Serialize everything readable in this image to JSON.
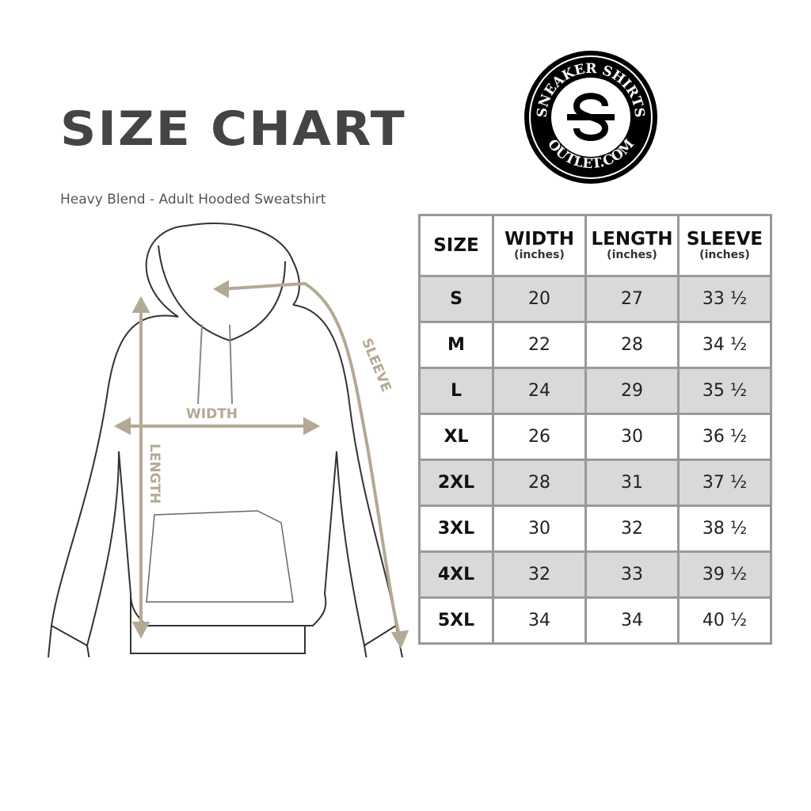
{
  "header": {
    "title": "SIZE CHART",
    "subtitle": "Heavy Blend - Adult Hooded Sweatshirt"
  },
  "logo": {
    "top_text": "SNEAKER SHIRTS",
    "bottom_text": "OUTLET.COM",
    "monogram": "SS"
  },
  "diagram": {
    "labels": {
      "width": "WIDTH",
      "length": "LENGTH",
      "sleeve": "SLEEVE"
    },
    "measure_color": "#b3a995"
  },
  "table": {
    "columns": [
      {
        "title": "SIZE",
        "unit": ""
      },
      {
        "title": "WIDTH",
        "unit": "(inches)"
      },
      {
        "title": "LENGTH",
        "unit": "(inches)"
      },
      {
        "title": "SLEEVE",
        "unit": "(inches)"
      }
    ],
    "rows": [
      {
        "size": "S",
        "width": "20",
        "length": "27",
        "sleeve": "33 ½"
      },
      {
        "size": "M",
        "width": "22",
        "length": "28",
        "sleeve": "34 ½"
      },
      {
        "size": "L",
        "width": "24",
        "length": "29",
        "sleeve": "35 ½"
      },
      {
        "size": "XL",
        "width": "26",
        "length": "30",
        "sleeve": "36 ½"
      },
      {
        "size": "2XL",
        "width": "28",
        "length": "31",
        "sleeve": "37 ½"
      },
      {
        "size": "3XL",
        "width": "30",
        "length": "32",
        "sleeve": "38 ½"
      },
      {
        "size": "4XL",
        "width": "32",
        "length": "33",
        "sleeve": "39 ½"
      },
      {
        "size": "5XL",
        "width": "34",
        "length": "34",
        "sleeve": "40 ½"
      }
    ],
    "shade_color": "#d9d9d9",
    "border_color": "#999999"
  }
}
